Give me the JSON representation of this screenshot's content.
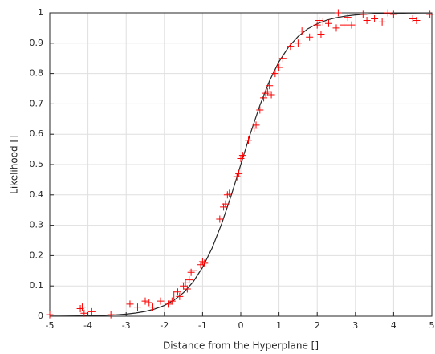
{
  "chart_data": {
    "type": "scatter",
    "xlabel": "Distance from the Hyperplane []",
    "ylabel": "Likelihood []",
    "xlim": [
      -5,
      5
    ],
    "xticks": [
      -5,
      -4,
      -3,
      -2,
      -1,
      0,
      1,
      2,
      3,
      4,
      5
    ],
    "ylim": [
      0,
      1
    ],
    "yticks": [
      0,
      0.1,
      0.2,
      0.3,
      0.4,
      0.5,
      0.6,
      0.7,
      0.8,
      0.9,
      1
    ],
    "grid": true,
    "points": {
      "color": "#ff0000",
      "x": [
        -5,
        -4.2,
        -4.15,
        -4.1,
        -3.9,
        -3.4,
        -2.9,
        -2.7,
        -2.5,
        -2.4,
        -2.3,
        -2.1,
        -1.9,
        -1.8,
        -1.75,
        -1.65,
        -1.6,
        -1.5,
        -1.45,
        -1.4,
        -1.35,
        -1.3,
        -1.25,
        -1.05,
        -1.0,
        -0.95,
        -0.55,
        -0.45,
        -0.4,
        -0.35,
        -0.3,
        -0.1,
        -0.05,
        0,
        0.05,
        0.2,
        0.35,
        0.4,
        0.5,
        0.6,
        0.65,
        0.7,
        0.75,
        0.8,
        0.9,
        1,
        1.1,
        1.3,
        1.5,
        1.6,
        1.8,
        2,
        2.05,
        2.1,
        2.15,
        2.3,
        2.5,
        2.55,
        2.7,
        2.8,
        2.9,
        3.2,
        3.3,
        3.5,
        3.7,
        3.85,
        4.0,
        4.5,
        4.6,
        4.95
      ],
      "values": [
        0.005,
        0.025,
        0.03,
        0.01,
        0.015,
        0.005,
        0.04,
        0.03,
        0.05,
        0.045,
        0.03,
        0.05,
        0.04,
        0.05,
        0.07,
        0.08,
        0.065,
        0.1,
        0.11,
        0.09,
        0.12,
        0.145,
        0.15,
        0.17,
        0.18,
        0.175,
        0.32,
        0.36,
        0.37,
        0.4,
        0.405,
        0.46,
        0.47,
        0.52,
        0.53,
        0.58,
        0.62,
        0.63,
        0.68,
        0.72,
        0.735,
        0.74,
        0.76,
        0.73,
        0.8,
        0.82,
        0.85,
        0.89,
        0.9,
        0.94,
        0.92,
        0.96,
        0.975,
        0.93,
        0.97,
        0.965,
        0.95,
        1.0,
        0.96,
        0.985,
        0.96,
        0.995,
        0.975,
        0.98,
        0.97,
        1.0,
        0.995,
        0.98,
        0.975,
        0.995
      ]
    },
    "curve": {
      "color": "#262626",
      "x": [
        -5,
        -4.75,
        -4.5,
        -4.25,
        -4,
        -3.75,
        -3.5,
        -3.25,
        -3,
        -2.75,
        -2.5,
        -2.25,
        -2,
        -1.75,
        -1.5,
        -1.25,
        -1,
        -0.75,
        -0.5,
        -0.25,
        0,
        0.25,
        0.5,
        0.75,
        1,
        1.25,
        1.5,
        1.75,
        2,
        2.25,
        2.5,
        2.75,
        3,
        3.25,
        3.5,
        3.75,
        4,
        4.25,
        4.5,
        4.75,
        5
      ],
      "values": [
        0.0003,
        0.0004,
        0.0006,
        0.0009,
        0.0014,
        0.0021,
        0.0031,
        0.0047,
        0.007,
        0.0106,
        0.0159,
        0.0239,
        0.0356,
        0.0528,
        0.0776,
        0.1128,
        0.161,
        0.2249,
        0.305,
        0.3983,
        0.5,
        0.6017,
        0.695,
        0.7751,
        0.839,
        0.8872,
        0.922,
        0.9472,
        0.964,
        0.9761,
        0.984,
        0.9894,
        0.993,
        0.9953,
        0.997,
        0.9979,
        0.9986,
        0.9991,
        0.9994,
        0.9996,
        0.9997
      ]
    }
  }
}
